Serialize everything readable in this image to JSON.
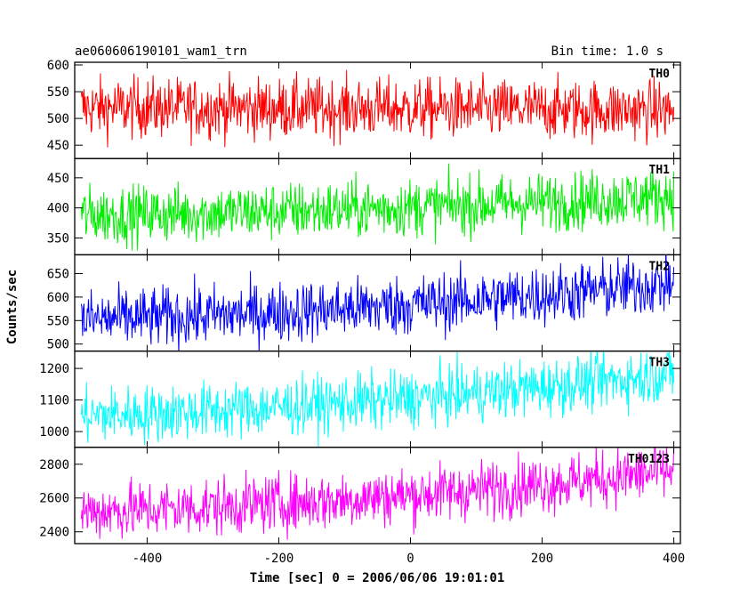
{
  "chart_data": {
    "type": "line",
    "title_left": "ae060606190101_wam1_trn",
    "title_right": "Bin time: 1.0 s",
    "xlabel": "Time [sec] 0 = 2006/06/06 19:01:01",
    "ylabel": "Counts/sec",
    "xlim": [
      -510,
      410
    ],
    "x_range": [
      -500,
      400
    ],
    "xticks": [
      -400,
      -200,
      0,
      200,
      400
    ],
    "grid": false,
    "panels": [
      {
        "label": "TH0",
        "color": "#ff0000",
        "ylim": [
          425,
          605
        ],
        "yticks": [
          450,
          500,
          550,
          600
        ],
        "level_start": 520,
        "level_end": 515,
        "noise": 28
      },
      {
        "label": "TH1",
        "color": "#00ee00",
        "ylim": [
          322,
          482
        ],
        "yticks": [
          350,
          400,
          450
        ],
        "level_start": 388,
        "level_end": 420,
        "noise": 24
      },
      {
        "label": "TH2",
        "color": "#0000ff",
        "ylim": [
          485,
          690
        ],
        "yticks": [
          500,
          550,
          600,
          650
        ],
        "level_start": 552,
        "level_end": 630,
        "noise": 32
      },
      {
        "label": "TH3",
        "color": "#00ffff",
        "ylim": [
          950,
          1255
        ],
        "yticks": [
          1000,
          1100,
          1200
        ],
        "level_start": 1050,
        "level_end": 1185,
        "noise": 45
      },
      {
        "label": "TH0123",
        "color": "#ff00ff",
        "ylim": [
          2330,
          2900
        ],
        "yticks": [
          2400,
          2600,
          2800
        ],
        "level_start": 2520,
        "level_end": 2760,
        "noise": 85
      }
    ]
  }
}
